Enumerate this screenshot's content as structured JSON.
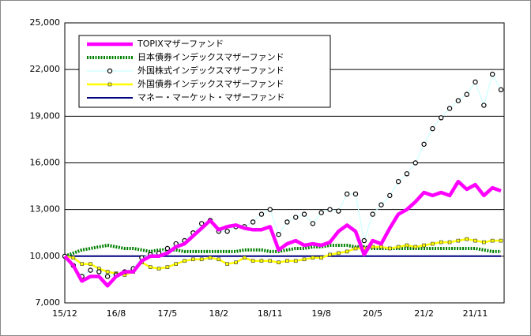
{
  "chart_data": {
    "type": "line",
    "categories": [
      "15/12",
      null,
      null,
      null,
      null,
      null,
      "16/8",
      null,
      null,
      null,
      null,
      null,
      "17/5",
      null,
      null,
      null,
      null,
      null,
      "18/2",
      null,
      null,
      null,
      null,
      null,
      "18/11",
      null,
      null,
      null,
      null,
      null,
      "19/8",
      null,
      null,
      null,
      null,
      null,
      "20/5",
      null,
      null,
      null,
      null,
      null,
      "21/2",
      null,
      null,
      null,
      null,
      null,
      "21/11",
      null,
      null,
      null
    ],
    "ylim": [
      7000,
      25000
    ],
    "yticks": [
      {
        "value": 7000,
        "label": "7,000"
      },
      {
        "value": 10000,
        "label": "10,000"
      },
      {
        "value": 13000,
        "label": "13,000"
      },
      {
        "value": 16000,
        "label": "16,000"
      },
      {
        "value": 19000,
        "label": "19,000"
      },
      {
        "value": 22000,
        "label": "22,000"
      },
      {
        "value": 25000,
        "label": "25,000"
      }
    ],
    "grid": true,
    "legend": "upper left",
    "series": [
      {
        "name": "TOPIXマザーファンド",
        "color": "#ff00ff",
        "values": [
          10000,
          9400,
          8400,
          8700,
          8700,
          8100,
          8700,
          9000,
          9000,
          9700,
          10000,
          10000,
          10200,
          10600,
          10800,
          11300,
          11800,
          12300,
          11700,
          11900,
          12000,
          11800,
          11700,
          11700,
          11900,
          10400,
          10800,
          11000,
          10700,
          10800,
          10700,
          10900,
          11600,
          12000,
          11600,
          10100,
          11000,
          10800,
          11800,
          12700,
          13000,
          13500,
          14100,
          13900,
          14100,
          13900,
          14800,
          14300,
          14600,
          13900,
          14400,
          14200
        ]
      },
      {
        "name": "日本債券インデックスマザーファンド",
        "color": "#008000",
        "values": [
          10000,
          10200,
          10400,
          10500,
          10600,
          10700,
          10600,
          10500,
          10500,
          10400,
          10300,
          10400,
          10400,
          10400,
          10300,
          10300,
          10300,
          10300,
          10300,
          10300,
          10300,
          10400,
          10400,
          10400,
          10300,
          10300,
          10400,
          10500,
          10500,
          10600,
          10600,
          10700,
          10700,
          10700,
          10600,
          10600,
          10500,
          10500,
          10500,
          10500,
          10500,
          10500,
          10500,
          10500,
          10500,
          10500,
          10500,
          10500,
          10500,
          10400,
          10300,
          10300
        ]
      },
      {
        "name": "外国株式インデックスマザーファンド",
        "color": "#ccffff",
        "values": [
          10000,
          9400,
          8700,
          9100,
          9000,
          8700,
          8800,
          9000,
          9200,
          9900,
          10100,
          10200,
          10500,
          10800,
          11000,
          11500,
          12100,
          12300,
          11600,
          11600,
          11900,
          11900,
          12200,
          12700,
          13000,
          11400,
          12200,
          12500,
          12700,
          12100,
          12800,
          13000,
          12900,
          14000,
          14000,
          11000,
          12700,
          13300,
          13900,
          14800,
          15300,
          16000,
          17200,
          18200,
          18900,
          19500,
          20000,
          20400,
          21200,
          19700,
          21700,
          20700
        ]
      },
      {
        "name": "外国債券インデックスマザーファンド",
        "color": "#ffff00",
        "values": [
          10000,
          9900,
          9500,
          9500,
          9200,
          9000,
          8900,
          8800,
          9000,
          9600,
          9300,
          9200,
          9300,
          9500,
          9700,
          9800,
          9800,
          9900,
          9800,
          9500,
          9600,
          9900,
          9700,
          9700,
          9700,
          9600,
          9700,
          9700,
          9800,
          9900,
          9900,
          10100,
          10200,
          10300,
          10500,
          10500,
          10600,
          10600,
          10500,
          10600,
          10700,
          10600,
          10700,
          10800,
          10900,
          10900,
          11000,
          11100,
          11000,
          10900,
          11000,
          11000
        ]
      },
      {
        "name": "マネー・マーケット・マザーファンド",
        "color": "#000080",
        "values": [
          10000,
          10000,
          10000,
          10000,
          10000,
          10000,
          10000,
          10000,
          10000,
          10000,
          10000,
          10000,
          10000,
          10000,
          10000,
          10000,
          10000,
          10000,
          10000,
          10000,
          10000,
          10000,
          10000,
          10000,
          10000,
          10000,
          10000,
          10000,
          10000,
          10000,
          10000,
          10000,
          10000,
          10000,
          10000,
          10000,
          10000,
          10000,
          10000,
          10000,
          10000,
          10000,
          10000,
          10000,
          10000,
          10000,
          10000,
          10000,
          10000,
          10000,
          10000,
          10000
        ]
      }
    ]
  }
}
